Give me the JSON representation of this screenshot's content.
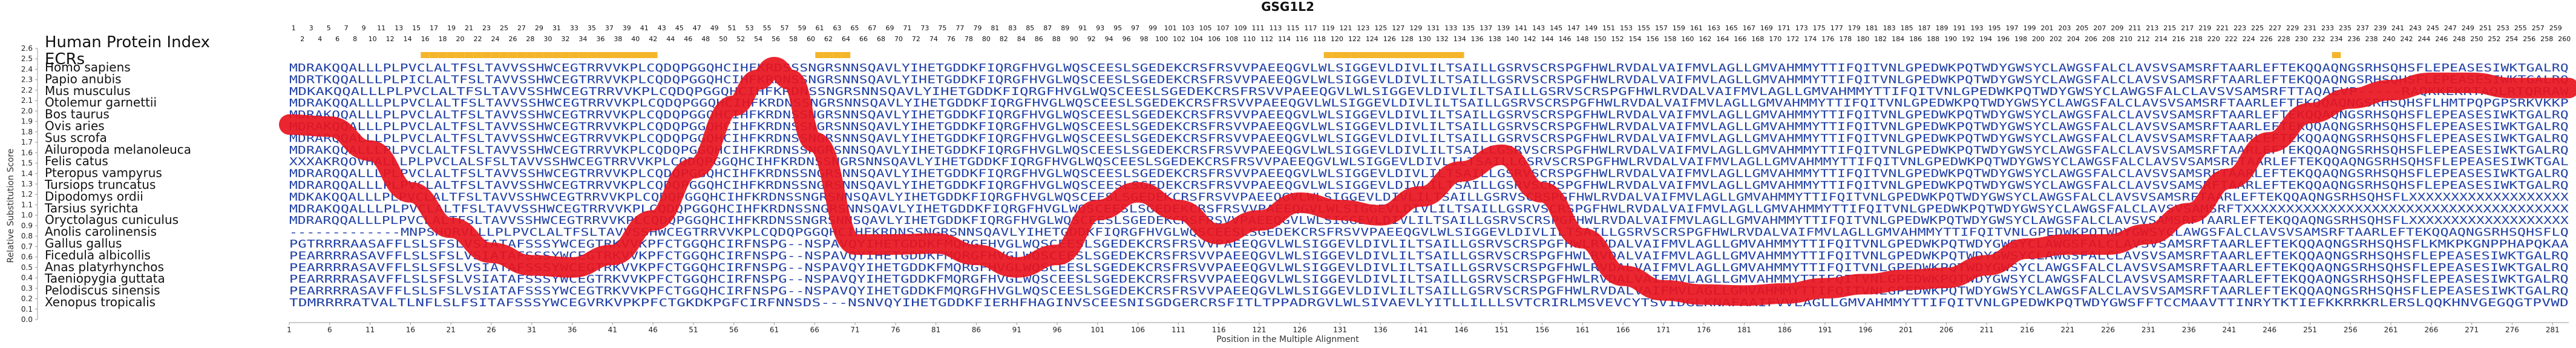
{
  "chart_data": {
    "type": "line",
    "title": "GSG1L2",
    "index_label": "Human Protein Index",
    "ecr_label": "ECRs",
    "xlabel": "Position in the Multiple Alignment",
    "ylabel": "Relative Substitution Score",
    "ylim": [
      0,
      2.6
    ],
    "yticks": [
      0,
      0.1,
      0.2,
      0.3,
      0.4,
      0.5,
      0.6,
      0.7,
      0.8,
      0.9,
      1.0,
      1.1,
      1.2,
      1.3,
      1.4,
      1.5,
      1.6,
      1.7,
      1.8,
      1.9,
      2.0,
      2.1,
      2.2,
      2.3,
      2.4,
      2.5,
      2.6
    ],
    "xlim": [
      1,
      283
    ],
    "xticks": [
      1,
      6,
      11,
      16,
      21,
      26,
      31,
      36,
      41,
      46,
      51,
      56,
      61,
      66,
      71,
      76,
      81,
      86,
      91,
      96,
      101,
      106,
      111,
      116,
      121,
      126,
      131,
      136,
      141,
      146,
      151,
      156,
      161,
      166,
      171,
      176,
      181,
      186,
      191,
      196,
      201,
      206,
      211,
      216,
      221,
      226,
      231,
      236,
      241,
      246,
      251,
      256,
      261,
      266,
      271,
      276,
      281
    ],
    "ecr_ranges": [
      [
        16,
        42
      ],
      [
        63,
        66
      ],
      [
        119,
        134
      ],
      [
        234,
        235
      ]
    ],
    "species": [
      "Homo sapiens",
      "Papio anubis",
      "Mus musculus",
      "Otolemur garnettii",
      "Bos taurus",
      "Ovis aries",
      "Sus scrofa",
      "Ailuropoda melanoleuca",
      "Felis catus",
      "Pteropus vampyrus",
      "Tursiops truncatus",
      "Dipodomys ordii",
      "Tarsius syrichta",
      "Oryctolagus cuniculus",
      "Anolis carolinensis",
      "Gallus gallus",
      "Ficedula albicollis",
      "Anas platyrhynchos",
      "Taeniopygia guttata",
      "Pelodiscus sinensis",
      "Xenopus tropicalis"
    ],
    "sequences": [
      "MDRAKQQALLLPLPVCLALTFSLTAVVSSHWCEGTRRVVKPLCQDQPGGQHCIHFKRDSSSNGRSNNSQAVLYIHETGDDKFIQRGFHVGLWQSCEESLSGEDEKCRSFRSVVPAEEQGVLWLSIGGEVLDIVLILTSAILLGSRVSCRSPGFHWLRVDALVAIFMVLAGLLGMVAHMMYTTIFQITVNLGPEDWKPQTWDYGWSYCLAWGSFALCLAVSVSAMSRFTAARLEFTEKQQAQNGSRHSQHSFLEPEASESIWKTGALRQ",
      "MDRTKQQALLLPLPICLALTFSLTAVVSSHWCEGTRRVVKPLCQDQPGGQHCIHFKRDNSSNGRSNNSQAVLYIHETGDDKFIQRGFHVGLWQSCEESLSGEDEKCRSFRSVVPAEEQGVLWLSIGGEVLDIVLILTSAILLGSRVSCRSPGFHWLRVDALVAIFMVLAGLLGMVAHMMYTTIFQITVNLGPEDWKPQTWDYGWSYCLAWGSFALCLAVSVSAMSRFTAARLEFTEKQQAQNGSRHSQHSFLEPEASESIWKTGALRQ",
      "MDKAKQQALLLPLPVCLALTFSLTAVVSSHWCEGTRRVVKPLCQDQPGGQHCIHFKRDNSSNGRSNNSQAVLYIHETGDDKFIQRGFHVGLWQSCEESLSGEDEKCRSFRSVVPAEEQGVLWLSIGGEVLDIVLILTSAILLGSRVSCRSPGFHWLRVDALVAIFMVLAGLLGMVAHMMYTTIFQITVNLGPEDWKPQTWDYGWSYCLAWGSFALCLAVSVSAMSRFTTAQAEVP-----RAQKKEKRTAQLRTQRRAW",
      "MDRAKQQALLLPLPVCLALTFSLTAVVSSHWCEGTRRVVKPLCQDQPGGQHCIHFKRDNSSNGRSNNSQAVLYIHETGDDKFIQRGFHVGLWQSCEESLSGEDEKCRSFRSVVPAEEQGVLWLSIGGEVLDIVLILTSAILLGSRVSCRSPGFHWLRVDALVAIFMVLAGLLGMVAHMMYTTIFQITVNLGPEDWKPQTWDYGWSYCLAWGSFALCLAVSVSAMSRFTAARLEFTEKQQAQNGSRHSQHSFLHMTPQPGPSRKVKKP",
      "MDRAKQQALLLPLPVCLALTFSLTAVVSSHWCEGTRRVVKPLCQDQPGGQHCIHFKRDNSSNGRSNNSQAVLYIHETGDDKFIQRGFHVGLWQSCEESLSGEDEKCRSFRSVVPAEEQGVLWLSIGGEVLDIVLILTSAILLGSRVSCRSPGFHWLRVDALVAIFMVLAGLLGMVAHMMYTTIFQITVNLGPEDWKPQTWDYGWSYCLAWGSFALCLAVSVSAMSRFTAARLEFTEKQQAQNGSRHSQHSFLEPEASESIWKTGALRQ",
      "MDRAKQQALLLPLPVCLALTFSLTAVVSSHWCEGTRRVVKPLCQDQPGGQHCIHFKRDNSSNGRSNNSQAVLYIHETGDDKFIQRGFHVGLWQSCEESLSGEDEKCRSFRSVVPAEEQGVLWLSIGGEVLDIVLILTSAILLGSRVSCRSPGFHWLRVDALVAIFMVLAGLLGMVAHMMYTTIFQITVNLGPEDWKPQTWDYGWSYCLAWGSFALCLAVSVSAMSRFTAARLEFTEKQQAQNGSRHSQHSFLEPEASESIWKTGALRQ",
      "MDRARQQALLLPLPVCLALTFSLTAVVSSHWCEGTRRVVKPLCQDQPGGQHCIHFKRDNSSNGRSNNSQAVLYIHETGDDKFIQRGFHVGLWQSCEESLSGEDEKCRSFRSVVPAEEQGVLWLSIGGEVLDIVLILTSAILLGSRVSCRSPGFHWLRVDALVAIFMVLAGLLGMVAHMMYTTIFQITVNLGPEDWKPQTWDYGWSYCLAWGSFALCLAVSVSAMSRFTAARLEFTEKQQAQNGSRHSQHSFLEPEASESIWKTGALRQ",
      "MDRAKQQALLLPLPVCLALTFSLTAVVSSHWCEGTRRVVKPLCQDQPGGQHCIHFKRDNSSNGRSNNSQAVLYIHETGDDKFIQRGFHVGLWQSCEESLSGEDEKCRSFRSVVPAEEQGVLWLSIGGEVLDIVLILTSAILLGSRVSCRSPGFHWLRVDALVAIFMVLAGLLGMVAHMMYTTIFQITVNLGPEDWKPQTWDYGWSYCLAWGSFALCLAVSVSAMSRFTAARLEFTEKQQAQNGSRHSQHSFLEPEASESIWKTGALRQ",
      "XXXAKRQOVHALLLPLPVCLALSFSLTAVVSSHWCEGTRRVVKPLCQDQPGGQHCIHFKRDNSSNGRSNNSQAVLYIHETGDDKFIQRGFHVGLWQSCEESLSGEDEKCRSFRSVVPAEEQGVLWLSIGGEVLDIVLILTSAILLGSRVSCRSPGFHWLRVDALVAIFMVLAGLLGMVAHMMYTTIFQITVNLGPEDWKPQTWDYGWSYCLAWGSFALCLAVSVSAMSRFTAARLEFTEKQQAQNGSRHSQHSFLEPEASESIWKTGAL",
      "MDRARQQALLLPLPVCLALTFSLTAVVSSHWCEGTRRVVKPLCQDQPGGQHCIHFKRDNSSNGRSNNSQAVLYIHETGDDKFIQRGFHVGLWQSCEESLSGEDEKCRSFRSVVPAEEQGVLWLSIGGEVLDIVLILTSAILLGSRVSCRSPGFHWLRVDALVAIFMVLAGLLGMVAHMMYTTIFQITVNLGPEDWKPQTWDYGWSYCLAWGSFALCLAVSVSAMSRFTAARLEFTEKQQAQNGSRHSQHSFLEPEASESIWKTGALRQ",
      "MDRARQQALLLPLPVCLALTFSLTAVVSSHWCEGTRRVVKPLCQDQPGGQHCIHFKRDNSSNGRSNNSQAVLYIHETGDDKFIQRGFHVGLWQSCEESLSGEDEKCRSFRSVVPAEEQGVLWLSIGGEVLDIVLILTSAILLGSRVSCRSPGFHWLRVDALVAIFMVLAGLLGMVAHMMYTTIFQITVNLGPEDWKPQTWDYGWSYCLAWGSFALCLAVSVSAMSRFTAARLEFTEKQQAQNGSRHSQHSFLEPEASESIWKTGALRQ",
      "MDKAKQQALLLPLPVCLALTFSLTAVVSSHWCEGTRRVVKPLCQDQPGGQHCIHFKRDNSSNGRSNNSQAVLYIHETGDDKFIQRGFHVGLWQSCEESLSGEDEKCRSFRSVVPAEEQGVLWLSIGGEVLDIVLILTSAILLGSRVSCRSPGFHWLRVDALVAIFMVLAGLLGMVAHMMYTTIFQITVNLGPEDWKPQTWDYGWSYCLAWGSFALCLAVSVSAMSRFTAARLEFTEKQQAQNGSRHSQHSFLXXXXXXXXXXXXXXXXXXX",
      "MDRAKQQALLLPLPVCLALTFSLTAVVSSHWCEGTRRVVKPLCQDQPGGQHCIHFKRDNSSNGRSNNSQAVLYIHETGDDKFIQRGFHVGLWQSCEESLSGEDEKCRSFRSVVPAEEQGVLWLSIGGEVLDIVLILTSAILLGSRVSCRSPGFHWLRVDALVAIFMVLAGLLGMVAHMMYTTIFQITVNLGPEDWKPQTWDYGWSYCLAWGSFALCLAVSVSAMSRFTXXXXXXXXXXXXXXXXXXXXXXXXXXXXXXXXXXXXXX",
      "MDRARQQALLLPLPVCLALTFSLTAVVSSHWCEGTRRVVKPLCQDQPGGQHCIHFKRDNSSNGRSNNSQAVLYIHETGDDKFIQRGFHVGLWQSCEESLSGEDEKCRSFRSVVPAEEQGVLWLSIGGEVLDIVLILTSAILLGSRVSCRSPGFHWLRVDALVAIFMVLAGLLGMVAHMMYTTIFQITVNLGPEDWKPQTWDYGWSYCLAWGSFALCLAVSVSAMSRFTAARLEFTEKQQAQNGSRHSQHSFLXXXXXXXXXXXXXXXXXXX",
      "-------------MNPSHQRVLLLPLPVCLALTFSLTAVVSSHWCEGTRRVVKPLCQDQPGGQHCIHFKRDNSSNGRSNNSQAVLYIHETGDDKFIQRGFHVGLWQSCEESLSGEDEKCRSFRSVVPAEEQGVLWLSIGGEVLDIVLILTSAILLGSRVSCRSPGFHWLRVDALVAIFMVLAGLLGMVAHMMYTTIFQITVNLGPEDWKPQTWDYGWSYCLAWGSFALCLAVSVSAMSRFTAARLEFTEKQQAQNGSRHSQHSFLQ",
      "PGTRRRRAASAFFLSLSFSLVSIATAFSSSYWCEGTRKVVKPFCTGGQHCIRFNSPG--NSPAVQYIHETGDDKFMQRGFHVGLWQSCEESLSGEDEKCRSFRSVVPAEEQGVLWLSIGGEVLDIVLILTSAILLGSRVSCRSPGFHWLRVDALVAIFMVLAGLLGMVAHMMYTTIFQITVNLGPEDWKPQTWDYGWSYCLAWGSFALCLAVSVSAMSRFTAARLEFTEKQQAQNGSRHSQHSFLKMKPKGNPPHAPQKAA",
      "PEARRRRASAVFFLSLSFSLVSIATAFSSSYWCEGTRKVVKPFCTGGQHCIRFNSPG--NSPAVQYIHETGDDKFMQRGFHVGLWQSCEESLSGEDEKCRSFRSVVPAEEQGVLWLSIGGEVLDIVLILTSAILLGSRVSCRSPGFHWLRVDALVAIFMVLAGLLGMVAHMMYTTIFQITVNLGPEDWKPQTWDYGWSYCLAWGSFALCLAVSVSAMSRFTAARLEFTEKQQAQNGSRHSQHSFLEPEASESIWKTGALRQ",
      "PEARRRRASAVFFLSLSFSLVSIATAFSSSYWCEGTRKVVKPFCTGGQHCIRFNSPG--NSPAVQYIHETGDDKFMQRGFHVGLWQSCEESLSGEDEKCRSFRSVVPAEEQGVLWLSIGGEVLDIVLILTSAILLGSRVSCRSPGFHWLRVDALVAIFMVLAGLLGMVAHMMYTTIFQITVNLGPEDWKPQTWDYGWSYCLAWGSFALCLAVSVSAMSRFTAARLEFTEKQQAQNGSRHSQHSFLEPEASESIWKTGALRQ",
      "PEARRRRASAVFFLSLSFSLVSIATAFSSSYWCEGTRKVVKPFCTGGQHCIRFNSPG--NSPAVQYIHETGDDKFMQRGFHVGLWQSCEESLSGEDEKCRSFRSVVPAEEQGVLWLSIGGEVLDIVLILTSAILLGSRVSCRSPGFHWLRVDALVAIFMVLAGLLGMVAHMMYTTIFQITVNLGPEDWKPQTWDYGWSYCLAWGSFALCLAVSVSAMSRFTAARLEFTEKQQAQNGSRHSQHSFLEPEASESIWKTGALRQ",
      "PEARRRRASAVFFLSLSFSLVSIATAFSSSYWCEGTRKVVKPFCTGGQHCIRFNSPG--NSPAVQYIHETGDDKFMQRGFHVGLWQSCEESLSGEDEKCRSFRSVVPAEEQGVLWLSIGGEVLDIVLILTSAILLGSRVSCRSPGFHWLRVDALVAIFMVLAGLLGMVAHMMYTTIFQITVNLGPEDWKPQTWDYGWSYCLAWGSFALCLAVSVSAMSRFTAARLEFTEKQQAQNGSRHSQHSFLEPEASESIWKTGALRQ",
      "TDMRRRRATVALTLNFLSLFSITAFSSSYWCEGVRKVPKPFCTGKDKPGFCIRFNNSDS---NSNVQYIHETGDDKFIERHFHAGINVSCEESNISGDGERCRSFITLTPPADRGVLWLSIVAEVLYITLLILLLSVTCRIRLMSVEVCYTSVIDGLKNAFAAIFVVLAGLLGMVAHMMYTTIFQITVNLGPEDWKPQTWDYGWSFFTCCMAAVTTINRYTKTIEFKKRRKRLERSLQQKHNVGEGQGTPVWD"
    ],
    "index_top": [
      1,
      3,
      5,
      7,
      9,
      11,
      13,
      15,
      17,
      19,
      21,
      23,
      25,
      27,
      29,
      31,
      33,
      35,
      37,
      39,
      41,
      43,
      45,
      47,
      49,
      51,
      53,
      55,
      57,
      59,
      61,
      63,
      65,
      67,
      69,
      71,
      73,
      75,
      77,
      79,
      81,
      83,
      85,
      87,
      89,
      91,
      93,
      95,
      97,
      99,
      101,
      103,
      105,
      107,
      109,
      111,
      113,
      115,
      117,
      119,
      121,
      123,
      125,
      127,
      129,
      131,
      133,
      135,
      137,
      139,
      141,
      143,
      145,
      147,
      149,
      151,
      153,
      155,
      157,
      159,
      161,
      163,
      165,
      167,
      169,
      171,
      173,
      175,
      177,
      179,
      181,
      183,
      185,
      187,
      189,
      191,
      193,
      195,
      197,
      199,
      201,
      203,
      205,
      207,
      209,
      211,
      213,
      215,
      217,
      219,
      221,
      223,
      225,
      227,
      229,
      231,
      233,
      235,
      237,
      239,
      241,
      243,
      245,
      247,
      249,
      251,
      253,
      255,
      257,
      259
    ],
    "index_bottom": [
      2,
      4,
      6,
      8,
      10,
      12,
      14,
      16,
      18,
      20,
      22,
      24,
      26,
      28,
      30,
      32,
      34,
      36,
      38,
      40,
      42,
      44,
      46,
      48,
      50,
      52,
      54,
      56,
      58,
      60,
      62,
      64,
      66,
      68,
      70,
      72,
      74,
      76,
      78,
      80,
      82,
      84,
      86,
      88,
      90,
      92,
      94,
      96,
      98,
      100,
      102,
      104,
      106,
      108,
      110,
      112,
      114,
      116,
      118,
      120,
      122,
      124,
      126,
      128,
      130,
      132,
      134,
      136,
      138,
      140,
      142,
      144,
      146,
      148,
      150,
      152,
      154,
      156,
      158,
      160,
      162,
      164,
      166,
      168,
      170,
      172,
      174,
      176,
      178,
      180,
      182,
      184,
      186,
      188,
      190,
      192,
      194,
      196,
      198,
      200,
      202,
      204,
      206,
      208,
      210,
      212,
      214,
      216,
      218,
      220,
      222,
      224,
      226,
      228,
      230,
      232,
      234,
      236,
      238,
      240,
      242,
      244,
      246,
      248,
      250,
      252,
      254,
      256,
      258,
      260
    ],
    "ecr_index_highlight": [
      16,
      17,
      18,
      19,
      20,
      21,
      22,
      23,
      24,
      25,
      26,
      27,
      28,
      29,
      30,
      31,
      32,
      33,
      34,
      35,
      36,
      37,
      38,
      39,
      40,
      41,
      42,
      61,
      62,
      63,
      64,
      119,
      120,
      121,
      122,
      123,
      124,
      125,
      126,
      127,
      128,
      129,
      130,
      131,
      132,
      133,
      134,
      234
    ],
    "series": [
      {
        "color": "#e8141e",
        "x": [
          1,
          6,
          11,
          16,
          21,
          26,
          31,
          36,
          41,
          46,
          51,
          56,
          59,
          61,
          63,
          66,
          71,
          76,
          81,
          86,
          91,
          96,
          101,
          106,
          111,
          116,
          121,
          126,
          131,
          136,
          141,
          146,
          151,
          156,
          161,
          166,
          171,
          176,
          181,
          186,
          191,
          196,
          201,
          206,
          211,
          216,
          221,
          226,
          231,
          236,
          241,
          246,
          251,
          256,
          261,
          266,
          271,
          276,
          281,
          283
        ],
        "y": [
          1.87,
          1.85,
          1.62,
          1.22,
          0.88,
          0.64,
          0.52,
          0.5,
          0.62,
          0.95,
          1.45,
          2.05,
          2.3,
          2.42,
          2.3,
          1.7,
          0.72,
          0.72,
          0.73,
          0.62,
          0.5,
          0.62,
          1.05,
          1.22,
          1.05,
          0.82,
          0.95,
          1.12,
          1.05,
          1.0,
          1.18,
          1.42,
          1.58,
          1.22,
          0.78,
          0.42,
          0.28,
          0.24,
          0.23,
          0.25,
          0.3,
          0.34,
          0.38,
          0.4,
          0.52,
          0.68,
          0.72,
          0.72,
          0.82,
          1.02,
          1.35,
          1.7,
          1.98,
          2.12,
          2.2,
          2.27,
          2.27,
          2.22,
          2.22,
          2.22
        ]
      }
    ]
  }
}
